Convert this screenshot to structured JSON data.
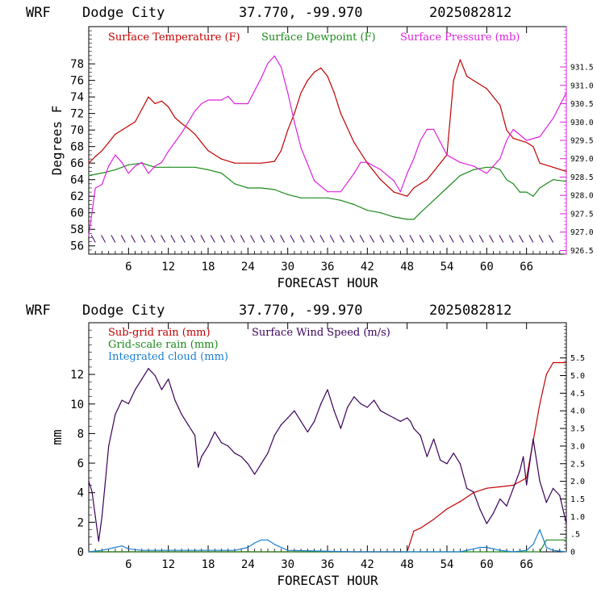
{
  "colors": {
    "temperature": "#c00000",
    "dewpoint": "#1a8a1a",
    "pressure": "#dd22dd",
    "wind": "#3a0058",
    "subgrid": "#c00000",
    "gridscale": "#1a8a1a",
    "cloud": "#1a7fd0",
    "barb": "#3a0058"
  },
  "chart_data": [
    {
      "type": "line",
      "header": {
        "model": "WRF",
        "station": "Dodge City",
        "coords": "37.770, -99.970",
        "date": "2025082812"
      },
      "xlabel": "FORECAST HOUR",
      "ylabel": "Degrees F",
      "xlim": [
        0,
        72
      ],
      "ylim": [
        55,
        82.5
      ],
      "xticks": [
        "6",
        "12",
        "18",
        "24",
        "30",
        "36",
        "42",
        "48",
        "54",
        "60",
        "66"
      ],
      "yticks": [
        "56",
        "58",
        "60",
        "62",
        "64",
        "66",
        "68",
        "70",
        "72",
        "74",
        "76",
        "78"
      ],
      "y2lim": [
        926.4,
        932.6
      ],
      "y2ticks": [
        "926.5",
        "927.0",
        "927.5",
        "928.0",
        "928.5",
        "929.0",
        "929.5",
        "930.0",
        "930.5",
        "931.0",
        "931.5"
      ],
      "wind_barbs": "row of wind barbs along the bottom of the panel (around 57 F level)",
      "series": [
        {
          "name": "Surface Temperature (F)",
          "axis": "left",
          "color": "temperature",
          "x": [
            0,
            1,
            2,
            3,
            4,
            5,
            6,
            7,
            8,
            9,
            10,
            11,
            12,
            13,
            14,
            15,
            16,
            17,
            18,
            20,
            22,
            24,
            26,
            28,
            29,
            30,
            31,
            32,
            33,
            34,
            35,
            36,
            37,
            38,
            40,
            42,
            44,
            46,
            48,
            49,
            50,
            51,
            52,
            53,
            54,
            55,
            56,
            57,
            58,
            60,
            62,
            63,
            64,
            66,
            67,
            68,
            70,
            72
          ],
          "y": [
            66,
            66.8,
            67.5,
            68.5,
            69.5,
            70,
            70.5,
            71,
            72.5,
            74,
            73.2,
            73.5,
            72.8,
            71.5,
            70.8,
            70.2,
            69.5,
            68.5,
            67.5,
            66.5,
            66,
            66,
            66,
            66.2,
            67.5,
            70,
            72,
            74.5,
            76,
            77,
            77.5,
            76.5,
            74.5,
            72,
            68.5,
            66,
            64,
            62.5,
            62,
            63,
            63.5,
            64,
            65,
            66,
            67,
            76,
            78.5,
            76.5,
            76,
            75,
            73,
            70,
            69,
            68.5,
            68,
            66,
            65.5,
            65
          ]
        },
        {
          "name": "Surface Dewpoint (F)",
          "axis": "left",
          "color": "dewpoint",
          "x": [
            0,
            2,
            4,
            6,
            8,
            10,
            12,
            14,
            16,
            18,
            20,
            22,
            24,
            26,
            28,
            30,
            32,
            34,
            36,
            38,
            40,
            42,
            44,
            46,
            48,
            49,
            50,
            52,
            54,
            56,
            58,
            60,
            61,
            62,
            63,
            64,
            65,
            66,
            67,
            68,
            69,
            70,
            72
          ],
          "y": [
            64.5,
            64.8,
            65.2,
            65.8,
            66,
            65.5,
            65.5,
            65.5,
            65.5,
            65.2,
            64.8,
            63.5,
            63,
            63,
            62.8,
            62.2,
            61.8,
            61.8,
            61.8,
            61.5,
            61,
            60.3,
            60,
            59.5,
            59.2,
            59.2,
            60,
            61.5,
            63,
            64.5,
            65.2,
            65.5,
            65.5,
            65.2,
            64,
            63.5,
            62.5,
            62.5,
            62,
            63,
            63.5,
            64,
            63.8
          ]
        },
        {
          "name": "Surface Pressure (mb)",
          "axis": "right",
          "color": "pressure",
          "x": [
            0,
            1,
            2,
            3,
            4,
            5,
            6,
            7,
            8,
            9,
            10,
            11,
            12,
            14,
            16,
            17,
            18,
            20,
            21,
            22,
            24,
            26,
            27,
            28,
            29,
            30,
            31,
            32,
            34,
            36,
            38,
            40,
            41,
            42,
            44,
            46,
            47,
            48,
            49,
            50,
            51,
            52,
            54,
            56,
            58,
            60,
            62,
            63,
            64,
            66,
            68,
            70,
            72
          ],
          "y": [
            926.9,
            928.2,
            928.3,
            928.8,
            929.1,
            928.9,
            928.6,
            928.8,
            928.9,
            928.6,
            928.8,
            928.9,
            929.2,
            929.7,
            930.3,
            930.5,
            930.6,
            930.6,
            930.7,
            930.5,
            930.5,
            931.2,
            931.6,
            931.8,
            931.5,
            930.8,
            930.0,
            929.3,
            928.4,
            928.1,
            928.1,
            928.6,
            928.9,
            928.9,
            928.7,
            928.4,
            928.1,
            928.6,
            929.0,
            929.5,
            929.8,
            929.8,
            929.1,
            928.9,
            928.8,
            928.6,
            929.0,
            929.5,
            929.8,
            929.5,
            929.6,
            930.1,
            930.8
          ]
        }
      ]
    },
    {
      "type": "line",
      "header": {
        "model": "WRF",
        "station": "Dodge City",
        "coords": "37.770, -99.970",
        "date": "2025082812"
      },
      "xlabel": "FORECAST HOUR",
      "ylabel": "mm",
      "xlim": [
        0,
        72
      ],
      "ylim": [
        0,
        15.5
      ],
      "xticks": [
        "6",
        "12",
        "18",
        "24",
        "30",
        "36",
        "42",
        "48",
        "54",
        "60",
        "66"
      ],
      "yticks": [
        "0",
        "2",
        "4",
        "6",
        "8",
        "10",
        "12"
      ],
      "y2lim": [
        0,
        6.5
      ],
      "y2ticks": [
        "0",
        ".5",
        "1.0",
        "1.5",
        "2.0",
        "2.5",
        "3.0",
        "3.5",
        "4.0",
        "4.5",
        "5.0",
        "5.5"
      ],
      "series": [
        {
          "name": "Sub-grid rain (mm)",
          "axis": "left",
          "color": "subgrid",
          "x": [
            0,
            48,
            49,
            50,
            52,
            54,
            56,
            58,
            60,
            62,
            64,
            66,
            67,
            68,
            69,
            70,
            71,
            72
          ],
          "y": [
            0,
            0,
            1.4,
            1.6,
            2.2,
            2.9,
            3.4,
            4,
            4.3,
            4.4,
            4.5,
            5,
            7.5,
            10,
            12,
            12.8,
            12.8,
            12.8
          ]
        },
        {
          "name": "Grid-scale rain (mm)",
          "axis": "left",
          "color": "gridscale",
          "x": [
            0,
            68,
            69,
            72
          ],
          "y": [
            0,
            0,
            0.8,
            0.8
          ]
        },
        {
          "name": "Integrated cloud (mm)",
          "axis": "left",
          "color": "cloud",
          "x": [
            0,
            2,
            4,
            5,
            6,
            8,
            10,
            14,
            18,
            22,
            24,
            25,
            26,
            27,
            28,
            30,
            40,
            48,
            56,
            58,
            59,
            60,
            62,
            64,
            66,
            67,
            68,
            69,
            70,
            72
          ],
          "y": [
            0,
            0.1,
            0.3,
            0.4,
            0.2,
            0.1,
            0.1,
            0.1,
            0.1,
            0.1,
            0.3,
            0.6,
            0.8,
            0.8,
            0.5,
            0.1,
            0,
            0,
            0,
            0.2,
            0.3,
            0.3,
            0.1,
            0,
            0.1,
            0.5,
            1.5,
            0.3,
            0.1,
            0
          ]
        },
        {
          "name": "Surface Wind Speed (m/s)",
          "axis": "right",
          "color": "wind",
          "x": [
            0,
            0.5,
            1,
            1.5,
            2,
            2.5,
            3,
            4,
            5,
            6,
            7,
            8,
            9,
            10,
            11,
            12,
            13,
            14,
            15,
            16,
            16.5,
            17,
            18,
            19,
            20,
            21,
            22,
            23,
            24,
            25,
            26,
            27,
            28,
            29,
            30,
            31,
            32,
            33,
            34,
            35,
            36,
            37,
            38,
            39,
            40,
            41,
            42,
            43,
            44,
            45,
            46,
            47,
            48,
            48.5,
            49,
            50,
            51,
            52,
            53,
            54,
            55,
            56,
            57,
            58,
            59,
            60,
            61,
            62,
            63,
            64,
            65,
            65.5,
            66,
            67,
            68,
            69,
            70,
            71,
            72
          ],
          "y": [
            2.0,
            1.7,
            1.0,
            0.3,
            1.0,
            2.0,
            3.0,
            3.9,
            4.3,
            4.2,
            4.6,
            4.9,
            5.2,
            5.0,
            4.6,
            4.9,
            4.3,
            3.9,
            3.6,
            3.3,
            2.4,
            2.7,
            3.0,
            3.4,
            3.1,
            3.0,
            2.8,
            2.7,
            2.5,
            2.2,
            2.5,
            2.8,
            3.3,
            3.6,
            3.8,
            4.0,
            3.7,
            3.4,
            3.7,
            4.2,
            4.6,
            4.0,
            3.5,
            4.1,
            4.4,
            4.2,
            4.1,
            4.3,
            4.0,
            3.9,
            3.8,
            3.7,
            3.8,
            3.7,
            3.5,
            3.3,
            2.7,
            3.2,
            2.6,
            2.5,
            2.8,
            2.5,
            1.8,
            1.7,
            1.2,
            0.8,
            1.1,
            1.5,
            1.3,
            1.8,
            2.3,
            2.7,
            1.9,
            3.2,
            2.0,
            1.4,
            1.8,
            1.6,
            0.8
          ]
        }
      ]
    }
  ]
}
